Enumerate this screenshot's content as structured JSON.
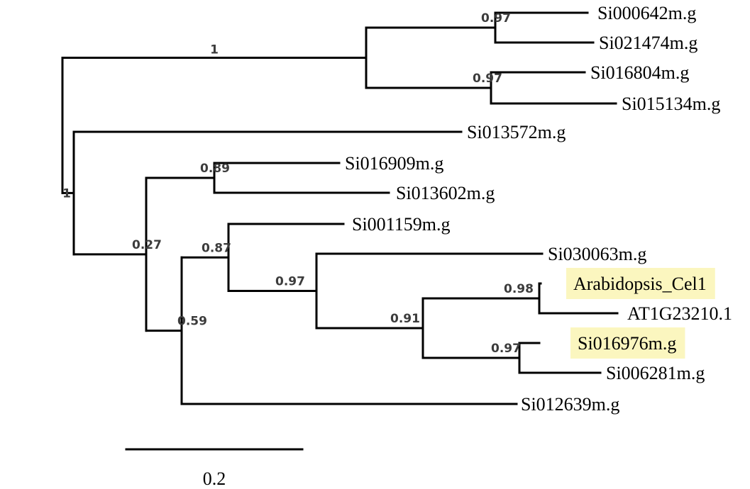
{
  "highlight_color": "#fbf6bf",
  "leaves": [
    {
      "id": "l1",
      "label": "Si000642m.g"
    },
    {
      "id": "l2",
      "label": "Si021474m.g"
    },
    {
      "id": "l3",
      "label": "Si016804m.g"
    },
    {
      "id": "l4",
      "label": "Si015134m.g"
    },
    {
      "id": "l5",
      "label": "Si013572m.g"
    },
    {
      "id": "l6",
      "label": "Si016909m.g"
    },
    {
      "id": "l7",
      "label": "Si013602m.g"
    },
    {
      "id": "l8",
      "label": "Si001159m.g"
    },
    {
      "id": "l9",
      "label": "Si030063m.g"
    },
    {
      "id": "l10",
      "label": "Arabidopsis_Cel1",
      "highlighted": true
    },
    {
      "id": "l11",
      "label": "AT1G23210.1"
    },
    {
      "id": "l12",
      "label": "Si016976m.g",
      "highlighted": true
    },
    {
      "id": "l13",
      "label": "Si006281m.g"
    },
    {
      "id": "l14",
      "label": "Si012639m.g"
    }
  ],
  "support_values": [
    {
      "node": "n1",
      "value": "0.97"
    },
    {
      "node": "n2",
      "value": "0.97"
    },
    {
      "node": "n3",
      "value": "1"
    },
    {
      "node": "n4",
      "value": "1"
    },
    {
      "node": "n5",
      "value": "0.89"
    },
    {
      "node": "n6",
      "value": "0.27"
    },
    {
      "node": "n7",
      "value": "0.87"
    },
    {
      "node": "n8",
      "value": "0.97"
    },
    {
      "node": "n9",
      "value": "0.91"
    },
    {
      "node": "n10",
      "value": "0.98"
    },
    {
      "node": "n11",
      "value": "0.97"
    },
    {
      "node": "n12",
      "value": "0.59"
    }
  ],
  "scale_bar": {
    "length": 0.2,
    "label": "0.2"
  }
}
